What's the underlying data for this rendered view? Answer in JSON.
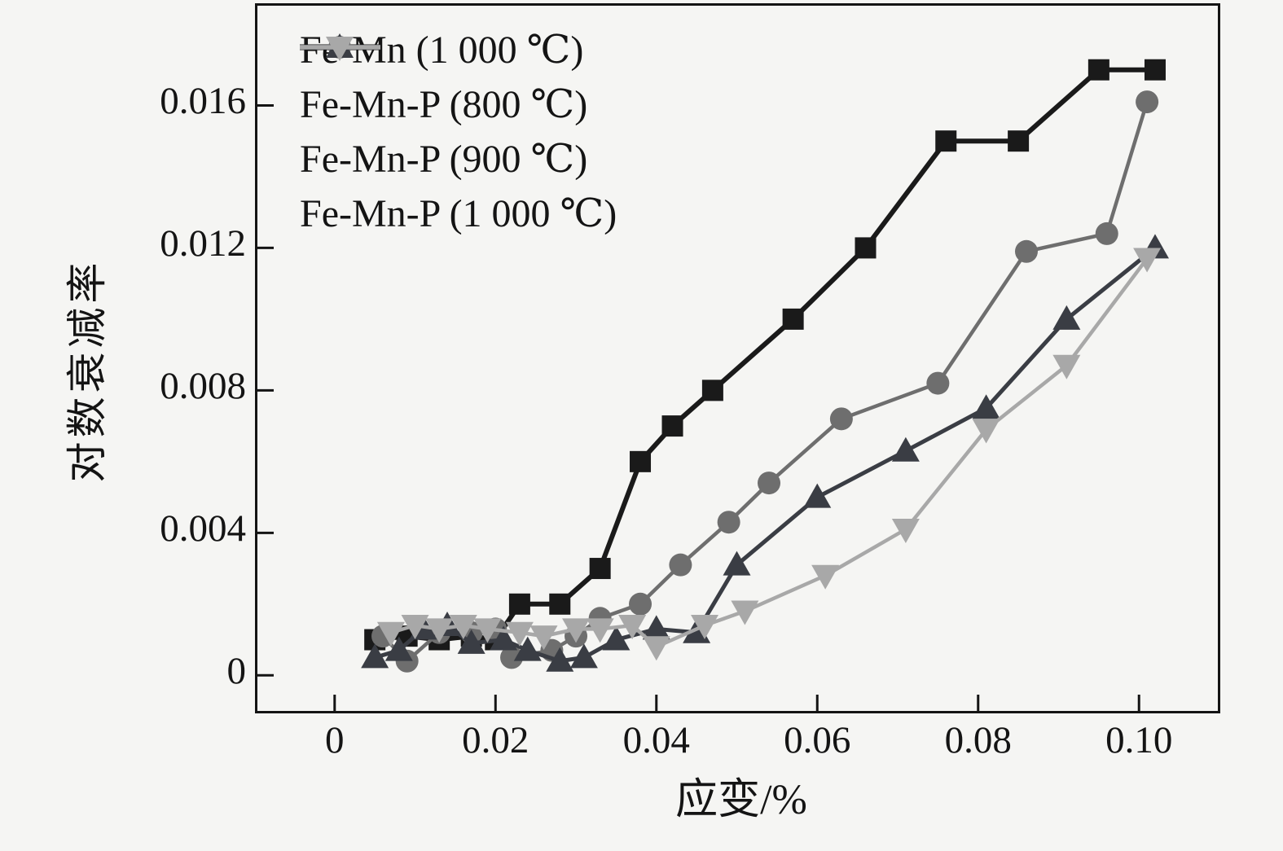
{
  "figure": {
    "background": "#f5f5f3",
    "axis_color": "#141414",
    "text_color": "#141414"
  },
  "chart_data": {
    "type": "line",
    "title": "",
    "xlabel": "应变/%",
    "ylabel": "对数衰减率",
    "grid": false,
    "legend_position": "top-left-inside",
    "xlim": [
      -0.0096,
      0.1098
    ],
    "ylim": [
      -0.001,
      0.0188
    ],
    "x_ticks": {
      "values": [
        0,
        0.02,
        0.04,
        0.06,
        0.08,
        0.1
      ],
      "labels": [
        "0",
        "0.02",
        "0.04",
        "0.06",
        "0.08",
        "0.10"
      ]
    },
    "y_ticks": {
      "values": [
        0,
        0.004,
        0.008,
        0.012,
        0.016
      ],
      "labels": [
        "0",
        "0.004",
        "0.008",
        "0.012",
        "0.016"
      ]
    },
    "tick_length": 20,
    "series": [
      {
        "name": "Fe-Mn (1 000 ℃)",
        "slug": "fe-mn-1000c",
        "marker": "square",
        "color": "#1a1a1a",
        "line_width": 6,
        "points": [
          [
            0.005,
            0.001
          ],
          [
            0.009,
            0.0011
          ],
          [
            0.013,
            0.001
          ],
          [
            0.017,
            0.0011
          ],
          [
            0.02,
            0.001
          ],
          [
            0.023,
            0.002
          ],
          [
            0.028,
            0.002
          ],
          [
            0.033,
            0.003
          ],
          [
            0.038,
            0.006
          ],
          [
            0.042,
            0.007
          ],
          [
            0.047,
            0.008
          ],
          [
            0.057,
            0.01
          ],
          [
            0.066,
            0.012
          ],
          [
            0.076,
            0.015
          ],
          [
            0.085,
            0.015
          ],
          [
            0.095,
            0.017
          ],
          [
            0.102,
            0.017
          ]
        ]
      },
      {
        "name": "Fe-Mn-P (800 ℃)",
        "slug": "fe-mn-p-800c",
        "marker": "circle",
        "color": "#6e6e6e",
        "line_width": 4.5,
        "points": [
          [
            0.006,
            0.0011
          ],
          [
            0.009,
            0.0004
          ],
          [
            0.013,
            0.0012
          ],
          [
            0.017,
            0.0012
          ],
          [
            0.02,
            0.0013
          ],
          [
            0.022,
            0.0005
          ],
          [
            0.027,
            0.0007
          ],
          [
            0.03,
            0.0011
          ],
          [
            0.033,
            0.0016
          ],
          [
            0.038,
            0.002
          ],
          [
            0.043,
            0.0031
          ],
          [
            0.049,
            0.0043
          ],
          [
            0.054,
            0.0054
          ],
          [
            0.063,
            0.0072
          ],
          [
            0.075,
            0.0082
          ],
          [
            0.086,
            0.0119
          ],
          [
            0.096,
            0.0124
          ],
          [
            0.101,
            0.0161
          ]
        ]
      },
      {
        "name": "Fe-Mn-P (900 ℃)",
        "slug": "fe-mn-p-900c",
        "marker": "triangle-up",
        "color": "#3a3d44",
        "line_width": 5,
        "points": [
          [
            0.005,
            0.0005
          ],
          [
            0.008,
            0.0007
          ],
          [
            0.011,
            0.0013
          ],
          [
            0.014,
            0.0014
          ],
          [
            0.017,
            0.0009
          ],
          [
            0.021,
            0.001
          ],
          [
            0.024,
            0.0007
          ],
          [
            0.028,
            0.0004
          ],
          [
            0.031,
            0.0005
          ],
          [
            0.035,
            0.001
          ],
          [
            0.04,
            0.0013
          ],
          [
            0.045,
            0.0012
          ],
          [
            0.05,
            0.0031
          ],
          [
            0.06,
            0.005
          ],
          [
            0.071,
            0.0063
          ],
          [
            0.081,
            0.0075
          ],
          [
            0.091,
            0.01
          ],
          [
            0.102,
            0.012
          ]
        ]
      },
      {
        "name": "Fe-Mn-P (1 000 ℃)",
        "slug": "fe-mn-p-1000c",
        "marker": "triangle-down",
        "color": "#a8a8a8",
        "line_width": 4.5,
        "points": [
          [
            0.007,
            0.0012
          ],
          [
            0.01,
            0.0014
          ],
          [
            0.013,
            0.0013
          ],
          [
            0.016,
            0.0014
          ],
          [
            0.019,
            0.0013
          ],
          [
            0.023,
            0.0012
          ],
          [
            0.026,
            0.0011
          ],
          [
            0.03,
            0.0013
          ],
          [
            0.033,
            0.0013
          ],
          [
            0.037,
            0.0014
          ],
          [
            0.04,
            0.0008
          ],
          [
            0.046,
            0.0014
          ],
          [
            0.051,
            0.0018
          ],
          [
            0.061,
            0.0028
          ],
          [
            0.071,
            0.0041
          ],
          [
            0.081,
            0.0069
          ],
          [
            0.091,
            0.0087
          ],
          [
            0.101,
            0.0117
          ]
        ]
      }
    ]
  }
}
